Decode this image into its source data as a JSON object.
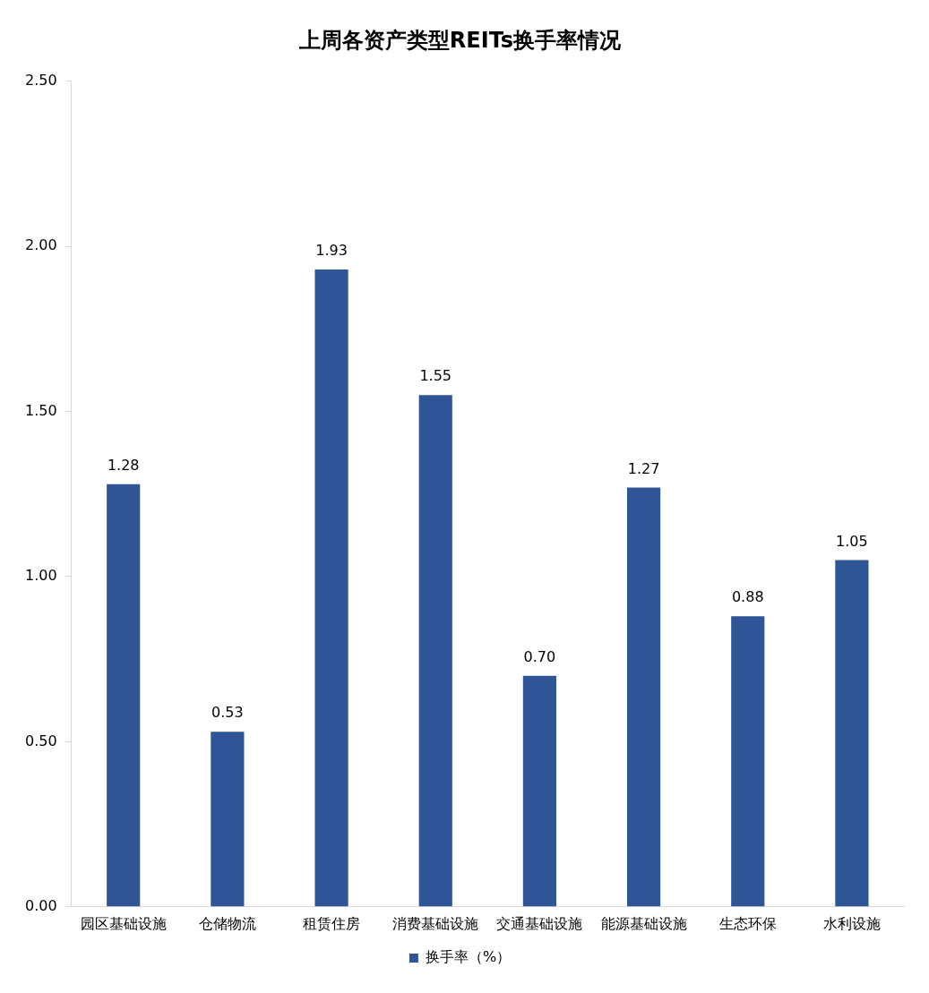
{
  "chart_data": {
    "type": "bar",
    "title": "上周各资产类型REITs换手率情况",
    "categories": [
      "园区基础设施",
      "仓储物流",
      "租赁住房",
      "消费基础设施",
      "交通基础设施",
      "能源基础设施",
      "生态环保",
      "水利设施"
    ],
    "series": [
      {
        "name": "换手率（%）",
        "color": "#2f5597",
        "values": [
          1.28,
          0.53,
          1.93,
          1.55,
          0.7,
          1.27,
          0.88,
          1.05
        ]
      }
    ],
    "value_labels": [
      "1.28",
      "0.53",
      "1.93",
      "1.55",
      "0.70",
      "1.27",
      "0.88",
      "1.05"
    ],
    "ylim": [
      0,
      2.5
    ],
    "yticks": [
      {
        "value": 0,
        "label": "0.00"
      },
      {
        "value": 0.5,
        "label": "0.50"
      },
      {
        "value": 1,
        "label": "1.00"
      },
      {
        "value": 1.5,
        "label": "1.50"
      },
      {
        "value": 2,
        "label": "2.00"
      },
      {
        "value": 2.5,
        "label": "2.50"
      }
    ],
    "grid": false,
    "legend": "bottom"
  }
}
